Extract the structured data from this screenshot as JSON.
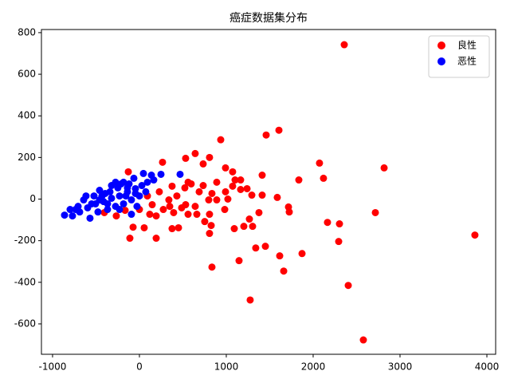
{
  "chart_data": {
    "type": "scatter",
    "title": "癌症数据集分布",
    "xlim": [
      -1128,
      4101
    ],
    "ylim": [
      -746,
      815
    ],
    "xticks": [
      -1000,
      0,
      1000,
      2000,
      3000,
      4000
    ],
    "yticks": [
      -600,
      -400,
      -200,
      0,
      200,
      400,
      600,
      800
    ],
    "legend": "upper right",
    "series": [
      {
        "name": "良性",
        "color": "#ff0000",
        "x": [
          2358,
          3862,
          2817,
          2578,
          2404,
          2294,
          2303,
          2165,
          2716,
          2119,
          2073,
          1872,
          1835,
          1606,
          1459,
          1615,
          1661,
          1450,
          1339,
          1275,
          1147,
          835,
          936,
          1587,
          1725,
          1716,
          1376,
          1413,
          1294,
          1303,
          1266,
          1202,
          1092,
          982,
          826,
          807,
          450,
          376,
          193,
          -110,
          55,
          -73,
          532,
          642,
          734,
          807,
          991,
          1073,
          266,
          -128,
          1413,
          1165,
          1165,
          1073,
          890,
          835,
          734,
          596,
          523,
          431,
          339,
          275,
          193,
          119,
          0,
          -165,
          -266,
          -404,
          642,
          661,
          807,
          532,
          394,
          486,
          688,
          991,
          1101,
          1239,
          798,
          560,
          376,
          229,
          92,
          147,
          349,
          560,
          752,
          1018,
          890
        ],
        "y": [
          742,
          -173,
          150,
          -677,
          -415,
          -204,
          -119,
          -112,
          -65,
          100,
          173,
          -262,
          92,
          331,
          308,
          -273,
          -346,
          -227,
          -235,
          -485,
          -296,
          -327,
          285,
          8,
          -62,
          -38,
          -65,
          115,
          19,
          -131,
          -96,
          -131,
          -142,
          -50,
          -127,
          -165,
          -138,
          -142,
          -188,
          -188,
          -138,
          -135,
          196,
          219,
          169,
          200,
          150,
          131,
          177,
          131,
          19,
          46,
          92,
          62,
          81,
          27,
          65,
          73,
          54,
          15,
          -4,
          -50,
          -81,
          -73,
          -50,
          -54,
          -81,
          -65,
          -35,
          -73,
          -73,
          -27,
          -65,
          -42,
          35,
          35,
          92,
          50,
          -4,
          81,
          62,
          35,
          15,
          -27,
          -35,
          -73,
          -108,
          0,
          -4
        ]
      },
      {
        "name": "恶性",
        "color": "#0000ff",
        "x": [
          -862,
          -771,
          -798,
          -706,
          -569,
          -642,
          -523,
          -459,
          -394,
          -321,
          -248,
          -183,
          -119,
          -64,
          46,
          138,
          248,
          468,
          -596,
          -505,
          -413,
          -321,
          -229,
          -138,
          -46,
          28,
          92,
          165,
          -688,
          -477,
          -367,
          -275,
          -183,
          -92,
          0,
          73,
          -92,
          -229,
          -431,
          -339,
          -275,
          -211,
          -138,
          -459,
          -550,
          -615,
          -734,
          -367,
          -156,
          -46,
          -28
        ],
        "y": [
          -77,
          -81,
          -50,
          -35,
          -92,
          -4,
          15,
          42,
          27,
          65,
          54,
          81,
          73,
          100,
          123,
          115,
          119,
          119,
          -42,
          -23,
          -12,
          4,
          15,
          35,
          50,
          65,
          81,
          92,
          -62,
          -62,
          -50,
          -35,
          -23,
          -4,
          15,
          35,
          -73,
          -50,
          15,
          35,
          81,
          73,
          54,
          -4,
          -23,
          15,
          -50,
          -23,
          15,
          27,
          -35
        ]
      }
    ]
  }
}
